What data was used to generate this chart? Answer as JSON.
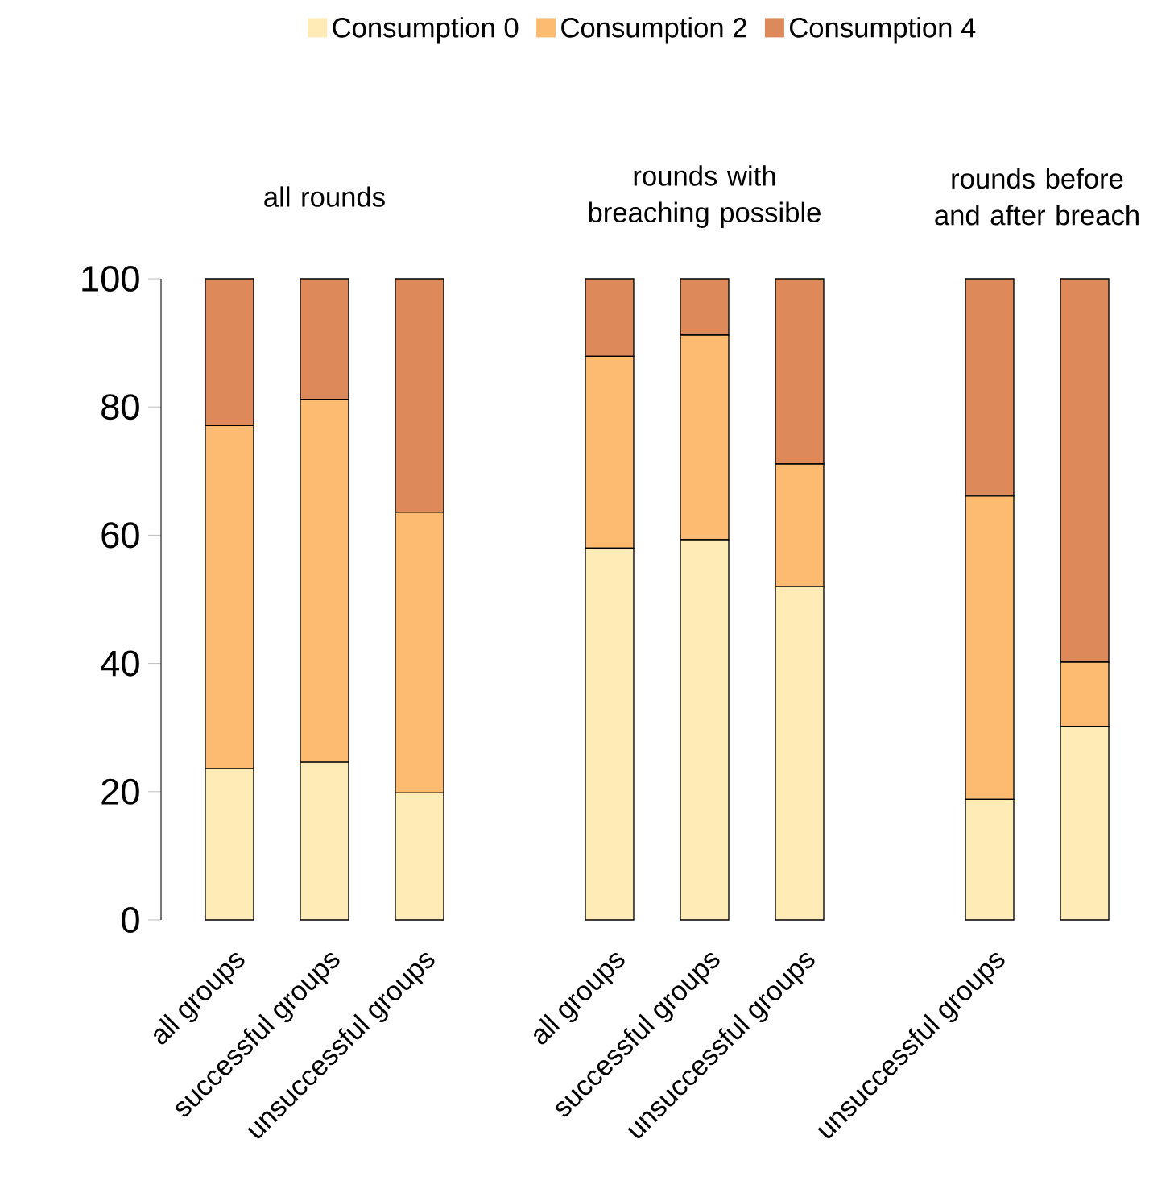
{
  "chart_data": {
    "type": "bar",
    "stacked": true,
    "categories": [
      "all groups",
      "successful groups",
      "unsuccessful groups",
      null,
      "all groups",
      "successful groups",
      "unsuccessful groups",
      null,
      "unsuccessful groups",
      null
    ],
    "series": [
      {
        "name": "Consumption 0",
        "color": "#feebb6",
        "values": [
          23.6,
          24.6,
          19.8,
          null,
          58.0,
          59.3,
          52.0,
          null,
          18.8,
          30.2
        ]
      },
      {
        "name": "Consumption 2",
        "color": "#fdbb71",
        "values": [
          53.5,
          56.6,
          43.8,
          null,
          29.9,
          31.9,
          19.1,
          null,
          47.3,
          10.0
        ]
      },
      {
        "name": "Consumption 4",
        "color": "#dd8959",
        "values": [
          22.9,
          18.8,
          36.4,
          null,
          12.1,
          8.8,
          28.9,
          null,
          33.9,
          59.8
        ]
      }
    ],
    "annotations": [
      "all rounds",
      "rounds with breaching possible",
      "rounds before and after breach"
    ],
    "ylim": [
      0,
      100
    ],
    "yticks": [
      0,
      20,
      40,
      60,
      80,
      100
    ],
    "legend": "top",
    "grid": false
  }
}
